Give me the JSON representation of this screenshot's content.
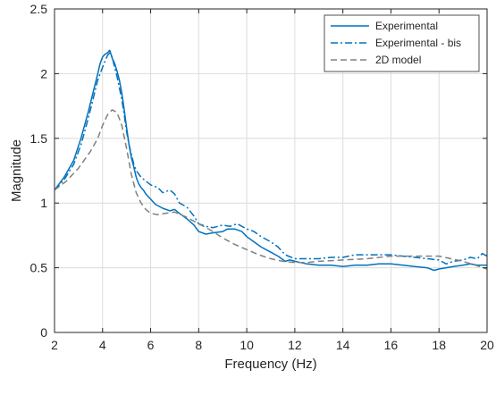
{
  "chart_data": {
    "type": "line",
    "title": "",
    "xlabel": "Frequency (Hz)",
    "ylabel": "Magnitude",
    "xlim": [
      2,
      20
    ],
    "ylim": [
      0,
      2.5
    ],
    "xticks": [
      2,
      4,
      6,
      8,
      10,
      12,
      14,
      16,
      18,
      20
    ],
    "yticks": [
      0,
      0.5,
      1,
      1.5,
      2,
      2.5
    ],
    "xtick_labels": [
      "2",
      "4",
      "6",
      "8",
      "10",
      "12",
      "14",
      "16",
      "18",
      "20"
    ],
    "ytick_labels": [
      "0",
      "0.5",
      "1",
      "1.5",
      "2",
      "2.5"
    ],
    "grid": true,
    "legend_position": "top-right",
    "series": [
      {
        "name": "Experimental",
        "color": "#0072BD",
        "style": "solid",
        "x": [
          2.0,
          2.4,
          2.8,
          3.1,
          3.4,
          3.6,
          3.8,
          3.9,
          4.0,
          4.1,
          4.2,
          4.3,
          4.4,
          4.5,
          4.6,
          4.7,
          4.8,
          4.9,
          5.0,
          5.1,
          5.2,
          5.3,
          5.4,
          5.5,
          5.6,
          5.7,
          5.8,
          6.0,
          6.2,
          6.5,
          6.8,
          7.0,
          7.2,
          7.5,
          7.8,
          8.0,
          8.3,
          8.6,
          9.0,
          9.2,
          9.5,
          9.8,
          10.0,
          10.3,
          10.6,
          11.0,
          11.3,
          11.6,
          11.8,
          12.0,
          12.5,
          13.0,
          13.5,
          14.0,
          14.5,
          15.0,
          15.5,
          16.0,
          16.5,
          17.0,
          17.5,
          17.8,
          18.0,
          18.3,
          18.6,
          19.0,
          19.3,
          19.6,
          20.0
        ],
        "y": [
          1.1,
          1.2,
          1.33,
          1.5,
          1.7,
          1.85,
          2.0,
          2.08,
          2.13,
          2.15,
          2.16,
          2.18,
          2.12,
          2.08,
          2.02,
          1.95,
          1.85,
          1.72,
          1.58,
          1.45,
          1.35,
          1.28,
          1.2,
          1.15,
          1.12,
          1.1,
          1.07,
          1.03,
          0.99,
          0.96,
          0.94,
          0.95,
          0.92,
          0.88,
          0.83,
          0.78,
          0.76,
          0.77,
          0.78,
          0.8,
          0.8,
          0.78,
          0.74,
          0.7,
          0.66,
          0.62,
          0.59,
          0.55,
          0.56,
          0.55,
          0.53,
          0.52,
          0.52,
          0.51,
          0.52,
          0.52,
          0.53,
          0.53,
          0.52,
          0.51,
          0.5,
          0.48,
          0.49,
          0.5,
          0.51,
          0.52,
          0.53,
          0.52,
          0.52
        ]
      },
      {
        "name": "Experimental - bis",
        "color": "#0072BD",
        "style": "dashdot",
        "x": [
          2.0,
          2.4,
          2.8,
          3.1,
          3.4,
          3.6,
          3.8,
          4.0,
          4.2,
          4.3,
          4.4,
          4.5,
          4.6,
          4.8,
          4.9,
          5.0,
          5.1,
          5.2,
          5.3,
          5.4,
          5.6,
          5.8,
          6.0,
          6.3,
          6.5,
          6.8,
          7.0,
          7.2,
          7.5,
          7.8,
          8.0,
          8.3,
          8.6,
          9.0,
          9.3,
          9.6,
          10.0,
          10.3,
          10.6,
          11.0,
          11.3,
          11.6,
          12.0,
          12.5,
          13.0,
          13.5,
          14.0,
          14.5,
          15.0,
          15.5,
          16.0,
          16.5,
          17.0,
          17.5,
          18.0,
          18.3,
          18.6,
          19.0,
          19.3,
          19.6,
          19.8,
          20.0
        ],
        "y": [
          1.1,
          1.18,
          1.3,
          1.45,
          1.65,
          1.8,
          1.95,
          2.05,
          2.14,
          2.16,
          2.13,
          2.05,
          1.98,
          1.8,
          1.68,
          1.55,
          1.45,
          1.38,
          1.3,
          1.25,
          1.2,
          1.17,
          1.14,
          1.12,
          1.08,
          1.1,
          1.07,
          1.0,
          0.97,
          0.9,
          0.84,
          0.82,
          0.81,
          0.83,
          0.82,
          0.84,
          0.8,
          0.78,
          0.74,
          0.7,
          0.66,
          0.6,
          0.57,
          0.57,
          0.57,
          0.58,
          0.58,
          0.6,
          0.6,
          0.6,
          0.6,
          0.59,
          0.58,
          0.57,
          0.56,
          0.53,
          0.55,
          0.56,
          0.58,
          0.57,
          0.61,
          0.59
        ]
      },
      {
        "name": "2D model",
        "color": "#808080",
        "style": "dashed",
        "x": [
          2.0,
          2.5,
          3.0,
          3.5,
          3.8,
          4.0,
          4.2,
          4.4,
          4.6,
          4.8,
          5.0,
          5.2,
          5.4,
          5.6,
          5.8,
          6.0,
          6.3,
          6.6,
          7.0,
          7.5,
          8.0,
          8.5,
          9.0,
          9.5,
          10.0,
          10.5,
          11.0,
          11.5,
          12.0,
          12.5,
          13.0,
          14.0,
          15.0,
          16.0,
          17.0,
          18.0,
          19.0,
          19.5,
          20.0
        ],
        "y": [
          1.1,
          1.17,
          1.27,
          1.4,
          1.5,
          1.6,
          1.68,
          1.72,
          1.7,
          1.6,
          1.42,
          1.22,
          1.08,
          1.0,
          0.95,
          0.92,
          0.91,
          0.92,
          0.93,
          0.89,
          0.84,
          0.79,
          0.73,
          0.68,
          0.64,
          0.6,
          0.57,
          0.55,
          0.54,
          0.54,
          0.55,
          0.56,
          0.57,
          0.59,
          0.59,
          0.59,
          0.55,
          0.52,
          0.49
        ]
      }
    ]
  }
}
